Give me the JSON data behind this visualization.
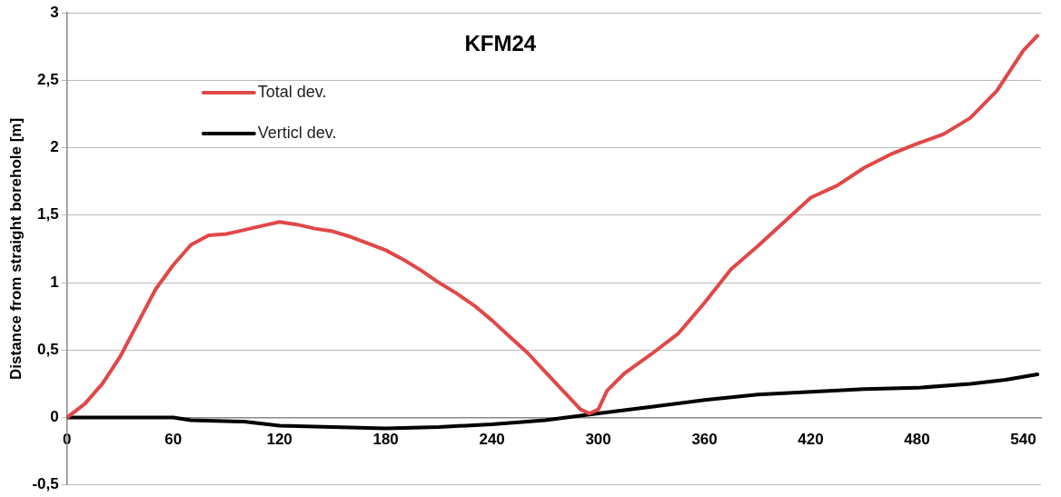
{
  "chart_data": {
    "type": "line",
    "title": "KFM24",
    "ylabel": "Distance from straight borehole [m]",
    "xlim": [
      0,
      550
    ],
    "xticks": [
      0,
      60,
      120,
      180,
      240,
      300,
      360,
      420,
      480,
      540
    ],
    "ylim": [
      -0.5,
      3
    ],
    "yticks": [
      {
        "value": -0.5,
        "label": "-0,5"
      },
      0,
      {
        "value": 0.5,
        "label": "0,5"
      },
      1,
      {
        "value": 1.5,
        "label": "1,5"
      },
      2,
      {
        "value": 2.5,
        "label": "2,5"
      },
      3
    ],
    "grid": "y",
    "legend": "top left",
    "marker": "none",
    "line_style": "solid",
    "series": [
      {
        "name": "Total dev.",
        "color": "#e04848",
        "x": [
          0,
          10,
          20,
          30,
          40,
          50,
          60,
          70,
          80,
          90,
          100,
          110,
          120,
          130,
          140,
          150,
          160,
          170,
          180,
          190,
          200,
          210,
          220,
          230,
          240,
          250,
          260,
          270,
          280,
          290,
          295,
          300,
          305,
          315,
          330,
          345,
          360,
          375,
          390,
          405,
          420,
          435,
          450,
          465,
          480,
          495,
          510,
          525,
          540,
          548
        ],
        "values": [
          0,
          0.1,
          0.25,
          0.45,
          0.7,
          0.95,
          1.13,
          1.28,
          1.35,
          1.36,
          1.39,
          1.42,
          1.45,
          1.43,
          1.4,
          1.38,
          1.34,
          1.29,
          1.24,
          1.17,
          1.09,
          1,
          0.92,
          0.83,
          0.72,
          0.6,
          0.48,
          0.34,
          0.2,
          0.06,
          0.03,
          0.06,
          0.2,
          0.33,
          0.47,
          0.62,
          0.85,
          1.1,
          1.27,
          1.45,
          1.63,
          1.72,
          1.85,
          1.95,
          2.03,
          2.1,
          2.22,
          2.42,
          2.72,
          2.83
        ]
      },
      {
        "name": "Verticl dev.",
        "color": "#000000",
        "x": [
          0,
          30,
          60,
          70,
          100,
          120,
          150,
          180,
          210,
          240,
          270,
          300,
          330,
          360,
          390,
          420,
          450,
          480,
          510,
          530,
          548
        ],
        "values": [
          0,
          0,
          0,
          -0.02,
          -0.03,
          -0.06,
          -0.07,
          -0.08,
          -0.07,
          -0.05,
          -0.02,
          0.03,
          0.08,
          0.13,
          0.17,
          0.19,
          0.21,
          0.22,
          0.25,
          0.28,
          0.32
        ]
      }
    ]
  }
}
